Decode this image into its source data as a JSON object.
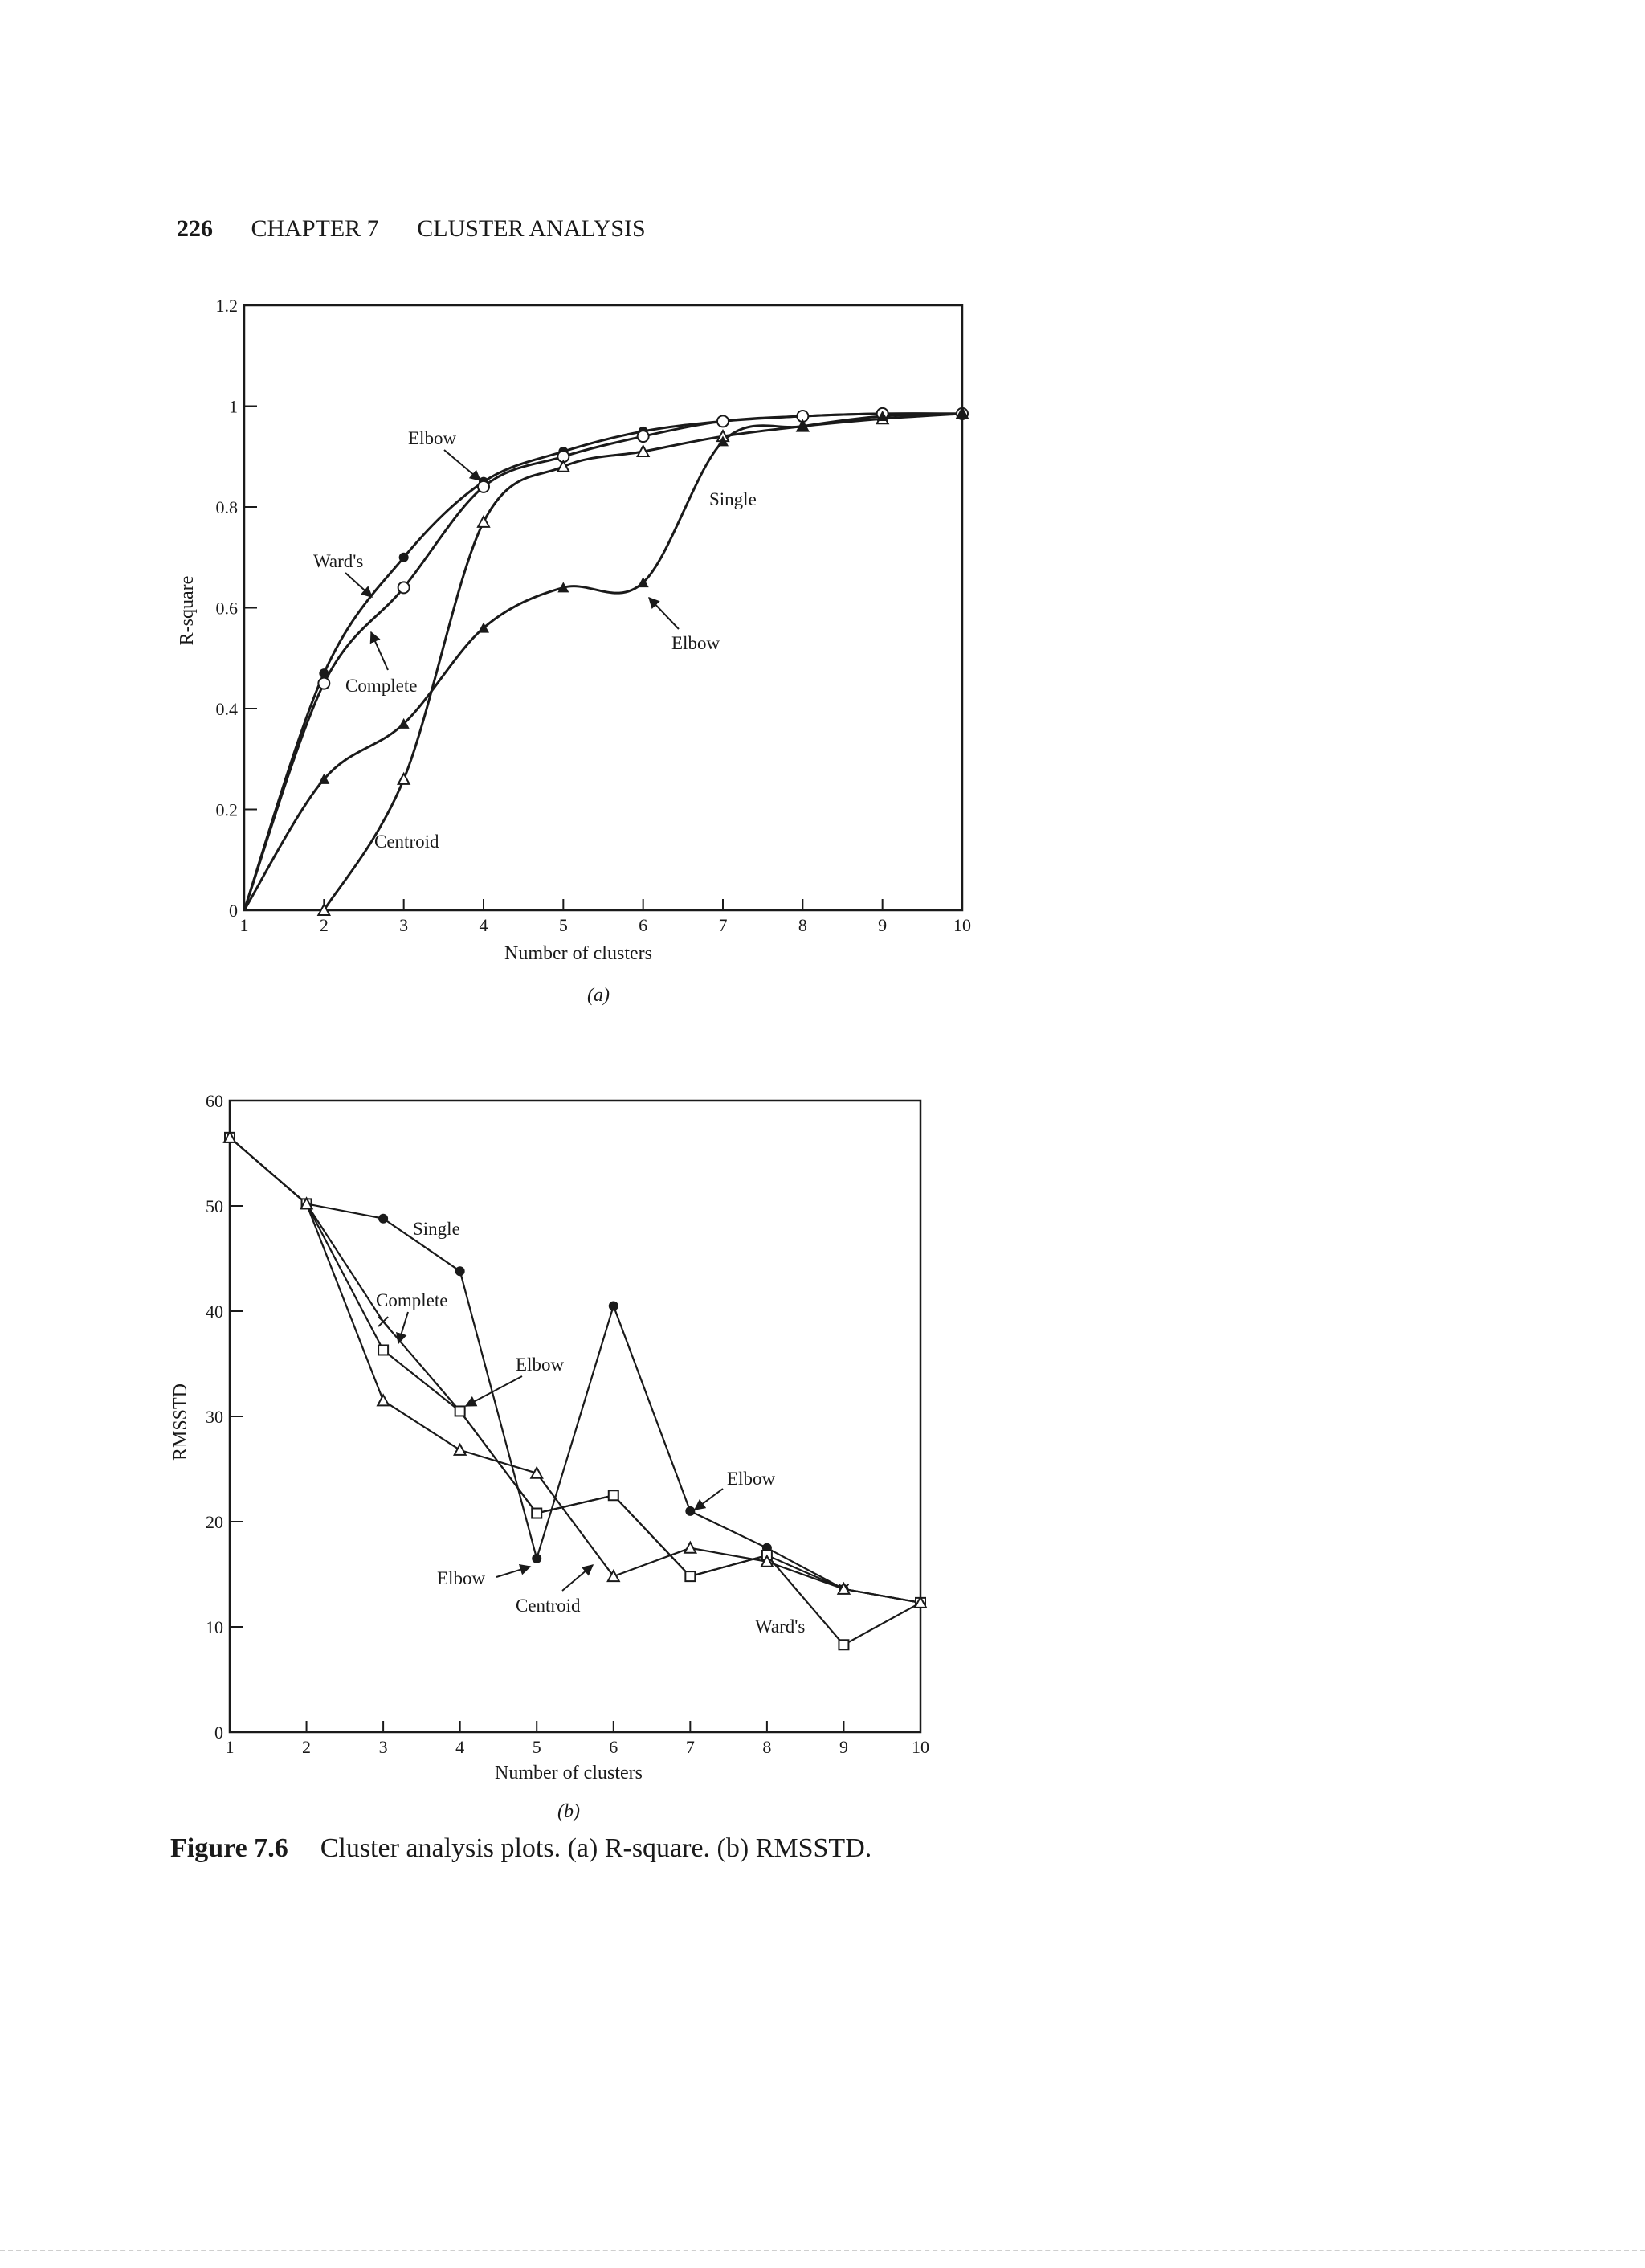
{
  "header": {
    "page_number": "226",
    "chapter": "CHAPTER 7",
    "title": "CLUSTER ANALYSIS"
  },
  "caption": {
    "label": "Figure 7.6",
    "text": "Cluster analysis plots. (a) R-square. (b) RMSSTD."
  },
  "chart_data": [
    {
      "id": "a",
      "type": "line",
      "panel_label": "(a)",
      "xlabel": "Number of clusters",
      "ylabel": "R-square",
      "xlim": [
        1,
        10
      ],
      "ylim": [
        0,
        1.2
      ],
      "x_ticks": [
        "1",
        "2",
        "3",
        "4",
        "5",
        "6",
        "7",
        "8",
        "9",
        "10"
      ],
      "y_ticks": [
        "0",
        "0.2",
        "0.4",
        "0.6",
        "0.8",
        "1",
        "1.2"
      ],
      "grid": false,
      "legend": "none",
      "series": [
        {
          "name": "Ward's",
          "marker": "dot",
          "x": [
            2,
            3,
            4,
            5,
            6,
            7,
            8,
            9,
            10
          ],
          "y": [
            0.47,
            0.7,
            0.85,
            0.91,
            0.95,
            0.97,
            0.98,
            0.985,
            0.985
          ]
        },
        {
          "name": "Complete",
          "marker": "open-circle",
          "x": [
            2,
            3,
            4,
            5,
            6,
            7,
            8,
            9,
            10
          ],
          "y": [
            0.45,
            0.64,
            0.84,
            0.9,
            0.94,
            0.97,
            0.98,
            0.985,
            0.985
          ]
        },
        {
          "name": "Centroid",
          "marker": "open-triangle",
          "x": [
            2,
            3,
            4,
            5,
            6,
            7,
            8,
            9,
            10
          ],
          "y": [
            0.0,
            0.26,
            0.77,
            0.88,
            0.91,
            0.94,
            0.96,
            0.975,
            0.985
          ]
        },
        {
          "name": "Single",
          "marker": "filled-triangle",
          "x": [
            2,
            3,
            4,
            5,
            6,
            7,
            8,
            9,
            10
          ],
          "y": [
            0.26,
            0.37,
            0.56,
            0.64,
            0.65,
            0.93,
            0.96,
            0.98,
            0.985
          ]
        }
      ],
      "annotations": [
        "Elbow",
        "Single",
        "Ward's",
        "Complete",
        "Elbow",
        "Centroid"
      ]
    },
    {
      "id": "b",
      "type": "line",
      "panel_label": "(b)",
      "xlabel": "Number of clusters",
      "ylabel": "RMSSTD",
      "xlim": [
        1,
        10
      ],
      "ylim": [
        0,
        60
      ],
      "x_ticks": [
        "1",
        "2",
        "3",
        "4",
        "5",
        "6",
        "7",
        "8",
        "9",
        "10"
      ],
      "y_ticks": [
        "0",
        "10",
        "20",
        "30",
        "40",
        "50",
        "60"
      ],
      "grid": false,
      "legend": "none",
      "series": [
        {
          "name": "Single",
          "marker": "dot",
          "x": [
            1,
            2,
            3,
            4,
            5,
            6,
            7,
            8,
            9,
            10
          ],
          "y": [
            56.5,
            50.2,
            48.8,
            43.8,
            16.5,
            40.5,
            21.0,
            17.5,
            13.6,
            12.3
          ]
        },
        {
          "name": "Complete",
          "marker": "cross",
          "x": [
            1,
            2,
            3,
            4,
            5,
            6,
            7,
            8,
            9,
            10
          ],
          "y": [
            56.5,
            50.2,
            39.0,
            30.5,
            20.8,
            22.5,
            14.8,
            16.8,
            13.6,
            12.3
          ]
        },
        {
          "name": "Ward's",
          "marker": "open-square",
          "x": [
            1,
            2,
            3,
            4,
            5,
            6,
            7,
            8,
            9,
            10
          ],
          "y": [
            56.5,
            50.2,
            36.3,
            30.5,
            20.8,
            22.5,
            14.8,
            16.8,
            8.3,
            12.3
          ]
        },
        {
          "name": "Centroid",
          "marker": "open-triangle",
          "x": [
            1,
            2,
            3,
            4,
            5,
            6,
            7,
            8,
            9,
            10
          ],
          "y": [
            56.5,
            50.2,
            31.5,
            26.8,
            24.6,
            14.8,
            17.5,
            16.2,
            13.6,
            12.3
          ]
        }
      ],
      "annotations": [
        "Single",
        "Complete",
        "Elbow",
        "Elbow",
        "Elbow",
        "Centroid",
        "Ward's"
      ]
    }
  ]
}
